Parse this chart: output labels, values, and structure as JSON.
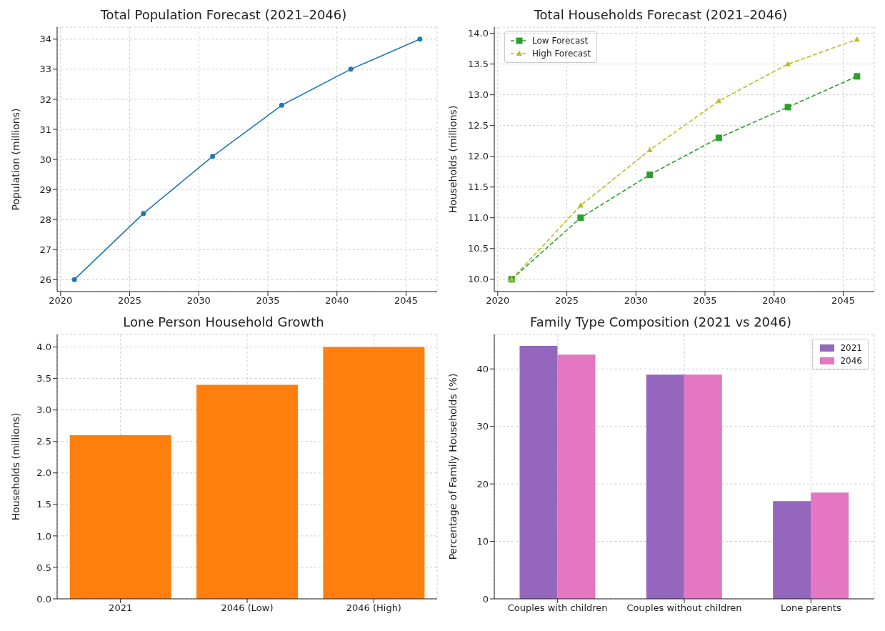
{
  "chart_data": [
    {
      "type": "line",
      "title": "Total Population Forecast (2021–2046)",
      "ylabel": "Population (millions)",
      "x": [
        2021,
        2026,
        2031,
        2036,
        2041,
        2046
      ],
      "series": [
        {
          "color": "#1f77b4",
          "values": [
            26,
            28.2,
            30.1,
            31.8,
            33,
            34
          ],
          "marker": "circle",
          "line_style": "solid"
        }
      ],
      "xlim": [
        2019.75,
        2047.25
      ],
      "xticks": [
        2020,
        2025,
        2030,
        2035,
        2040,
        2045
      ],
      "ylim": [
        25.6,
        34.4
      ],
      "yticks": [
        26,
        27,
        28,
        29,
        30,
        31,
        32,
        33,
        34
      ],
      "grid": true,
      "legend": false
    },
    {
      "type": "line",
      "title": "Total Households Forecast (2021–2046)",
      "ylabel": "Households (millions)",
      "x": [
        2021,
        2026,
        2031,
        2036,
        2041,
        2046
      ],
      "series": [
        {
          "name": "Low Forecast",
          "color": "#2ca02c",
          "values": [
            10,
            11,
            11.7,
            12.3,
            12.8,
            13.3
          ],
          "marker": "square",
          "line_style": "dashed"
        },
        {
          "name": "High Forecast",
          "color": "#bcbd22",
          "values": [
            10,
            11.2,
            12.1,
            12.9,
            13.5,
            13.9
          ],
          "marker": "triangle",
          "line_style": "dashed"
        }
      ],
      "xlim": [
        2019.75,
        2047.25
      ],
      "xticks": [
        2020,
        2025,
        2030,
        2035,
        2040,
        2045
      ],
      "ylim": [
        9.8,
        14.1
      ],
      "yticks": [
        {
          "value": 10,
          "label": "10.0"
        },
        {
          "value": 10.5,
          "label": "10.5"
        },
        {
          "value": 11,
          "label": "11.0"
        },
        {
          "value": 11.5,
          "label": "11.5"
        },
        {
          "value": 12,
          "label": "12.0"
        },
        {
          "value": 12.5,
          "label": "12.5"
        },
        {
          "value": 13,
          "label": "13.0"
        },
        {
          "value": 13.5,
          "label": "13.5"
        },
        {
          "value": 14,
          "label": "14.0"
        }
      ],
      "grid": true,
      "legend": "top left"
    },
    {
      "type": "bar",
      "title": "Lone Person Household Growth",
      "ylabel": "Households (millions)",
      "categories": [
        "2021",
        "2046 (Low)",
        "2046 (High)"
      ],
      "series": [
        {
          "color": "#ff7f0e",
          "values": [
            2.6,
            3.4,
            4.0
          ]
        }
      ],
      "ylim": [
        0,
        4.2
      ],
      "yticks": [
        {
          "value": 0,
          "label": "0.0"
        },
        {
          "value": 0.5,
          "label": "0.5"
        },
        {
          "value": 1,
          "label": "1.0"
        },
        {
          "value": 1.5,
          "label": "1.5"
        },
        {
          "value": 2,
          "label": "2.0"
        },
        {
          "value": 2.5,
          "label": "2.5"
        },
        {
          "value": 3,
          "label": "3.0"
        },
        {
          "value": 3.5,
          "label": "3.5"
        },
        {
          "value": 4,
          "label": "4.0"
        }
      ],
      "grid": true,
      "legend": false
    },
    {
      "type": "bar",
      "title": "Family Type Composition (2021 vs 2046)",
      "ylabel": "Percentage of Family Households (%)",
      "categories": [
        "Couples with children",
        "Couples without children",
        "Lone parents"
      ],
      "series": [
        {
          "name": "2021",
          "color": "#9467bd",
          "values": [
            44,
            39,
            17
          ]
        },
        {
          "name": "2046",
          "color": "#e377c2",
          "values": [
            42.5,
            39,
            18.5
          ]
        }
      ],
      "ylim": [
        0,
        46
      ],
      "yticks": [
        0,
        10,
        20,
        30,
        40
      ],
      "grid": true,
      "legend": "top right"
    }
  ]
}
